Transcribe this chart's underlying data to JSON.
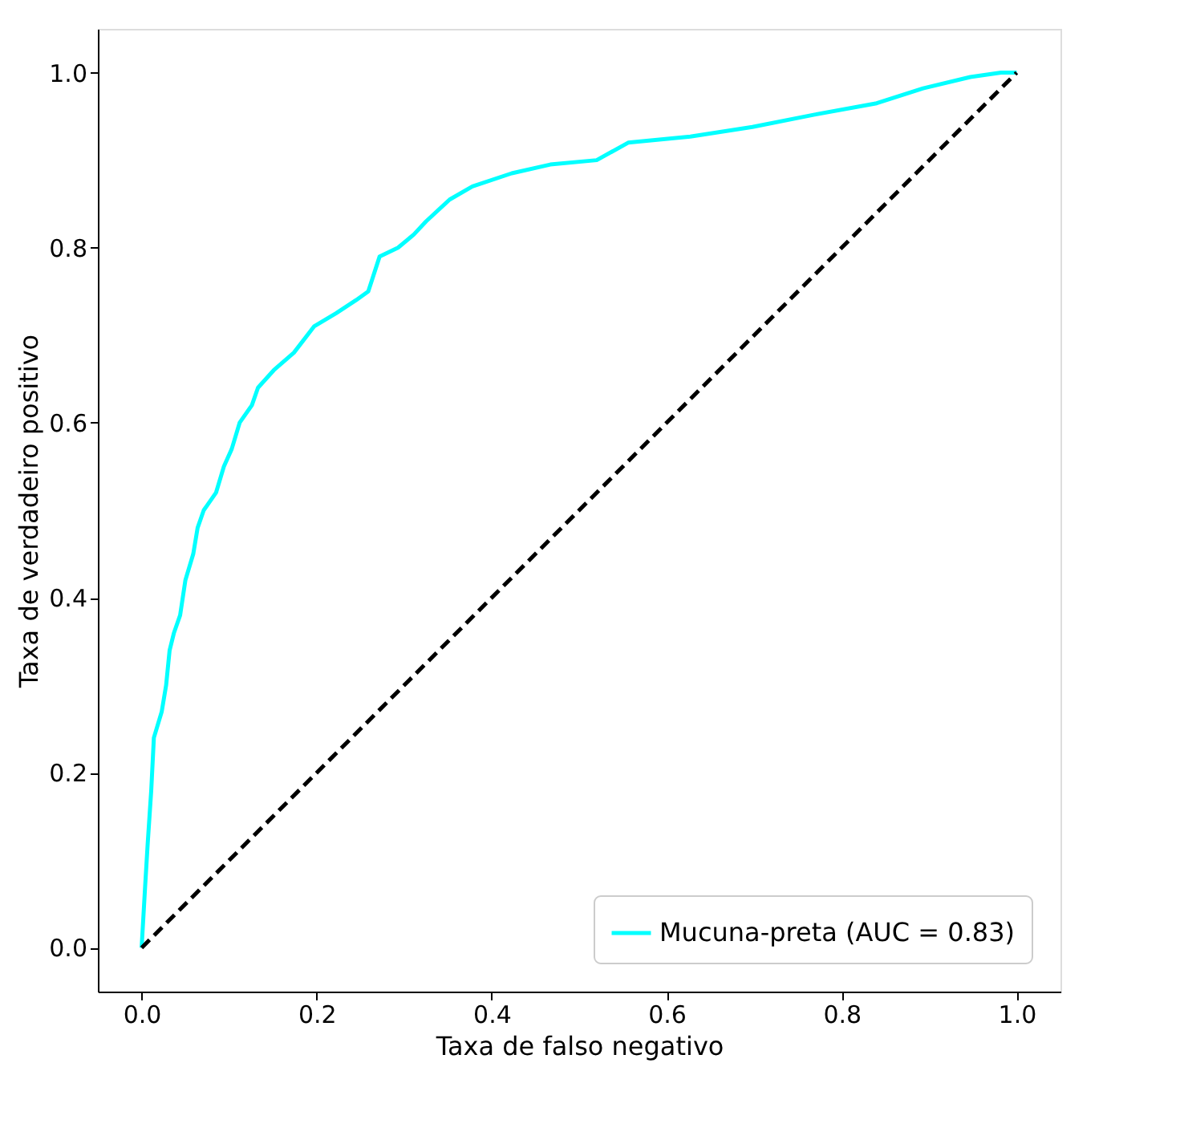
{
  "chart_data": {
    "type": "line",
    "xlabel": "Taxa de falso negativo",
    "ylabel": "Taxa de verdadeiro positivo",
    "xlim": [
      -0.05,
      1.05
    ],
    "ylim": [
      -0.05,
      1.05
    ],
    "xticks": [
      {
        "value": 0,
        "label": "0.0"
      },
      {
        "value": 0.2,
        "label": "0.2"
      },
      {
        "value": 0.4,
        "label": "0.4"
      },
      {
        "value": 0.6,
        "label": "0.6"
      },
      {
        "value": 0.8,
        "label": "0.8"
      },
      {
        "value": 1,
        "label": "1.0"
      }
    ],
    "yticks": [
      {
        "value": 0,
        "label": "0.0"
      },
      {
        "value": 0.2,
        "label": "0.2"
      },
      {
        "value": 0.4,
        "label": "0.4"
      },
      {
        "value": 0.6,
        "label": "0.6"
      },
      {
        "value": 0.8,
        "label": "0.8"
      },
      {
        "value": 1,
        "label": "1.0"
      }
    ],
    "grid": false,
    "legend": "bottom right",
    "series": [
      {
        "name": "Mucuna-preta (AUC = 0.83)",
        "color": "#00ffff",
        "line_style": "solid",
        "x": [
          0,
          0.004,
          0.007,
          0.011,
          0.014,
          0.023,
          0.028,
          0.032,
          0.037,
          0.044,
          0.05,
          0.059,
          0.064,
          0.071,
          0.085,
          0.094,
          0.103,
          0.112,
          0.126,
          0.133,
          0.151,
          0.174,
          0.197,
          0.222,
          0.245,
          0.259,
          0.272,
          0.293,
          0.311,
          0.325,
          0.352,
          0.378,
          0.423,
          0.467,
          0.52,
          0.556,
          0.627,
          0.698,
          0.769,
          0.84,
          0.893,
          0.947,
          0.982,
          1
        ],
        "values": [
          0,
          0.07,
          0.12,
          0.18,
          0.24,
          0.27,
          0.3,
          0.34,
          0.36,
          0.38,
          0.42,
          0.45,
          0.48,
          0.5,
          0.52,
          0.55,
          0.57,
          0.6,
          0.62,
          0.64,
          0.66,
          0.68,
          0.71,
          0.725,
          0.74,
          0.75,
          0.79,
          0.8,
          0.815,
          0.83,
          0.855,
          0.87,
          0.885,
          0.895,
          0.9,
          0.92,
          0.927,
          0.938,
          0.952,
          0.965,
          0.982,
          0.995,
          1,
          1
        ]
      },
      {
        "color": "#000000",
        "line_style": "dashed",
        "x": [
          0,
          1
        ],
        "values": [
          0,
          1
        ]
      }
    ]
  }
}
